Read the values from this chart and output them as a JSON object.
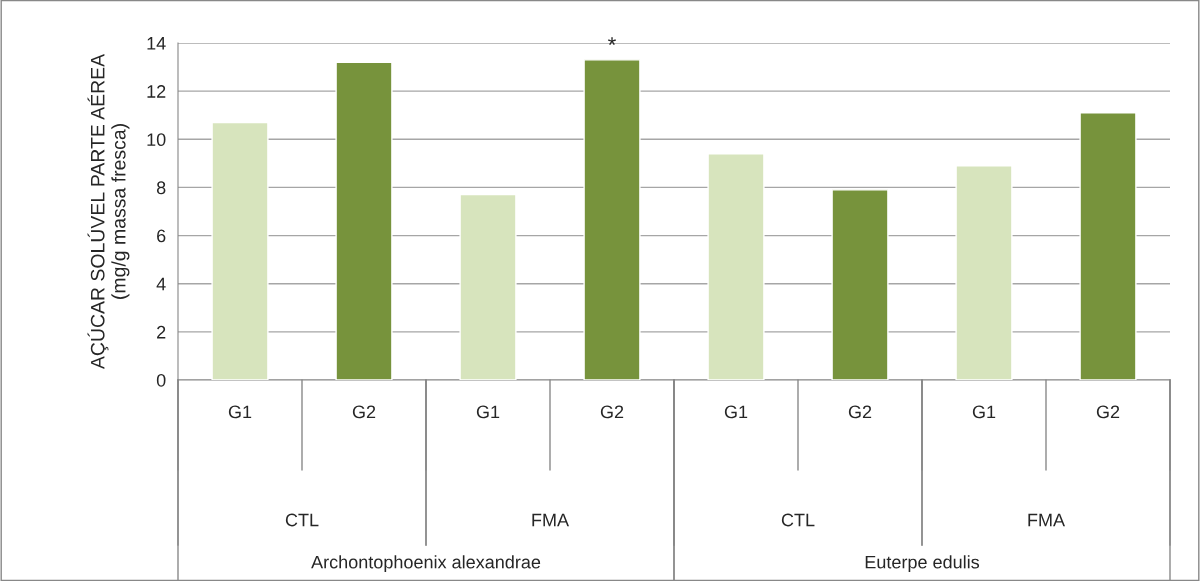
{
  "chart_data": {
    "type": "bar",
    "ylabel": "AÇÚCAR SOLÚVEL PARTE AÉREA\n(mg/g massa fresca)",
    "categories": [
      "G1",
      "G2",
      "G1",
      "G2",
      "G1",
      "G2",
      "G1",
      "G2"
    ],
    "values": [
      10.7,
      13.2,
      7.7,
      13.3,
      9.4,
      7.9,
      8.9,
      11.1
    ],
    "colors": [
      "#d7e4bd",
      "#77933c",
      "#d7e4bd",
      "#77933c",
      "#d7e4bd",
      "#77933c",
      "#d7e4bd",
      "#77933c"
    ],
    "value_labels": [
      null,
      null,
      null,
      "*",
      null,
      null,
      null,
      null
    ],
    "annotations": [
      "CTL",
      "FMA",
      "CTL",
      "FMA",
      "Archontophoenix alexandrae",
      "Euterpe edulis"
    ],
    "ylim": [
      0,
      14
    ],
    "yticks": [
      0,
      2,
      4,
      6,
      8,
      10,
      12,
      14
    ],
    "grid": "y"
  }
}
